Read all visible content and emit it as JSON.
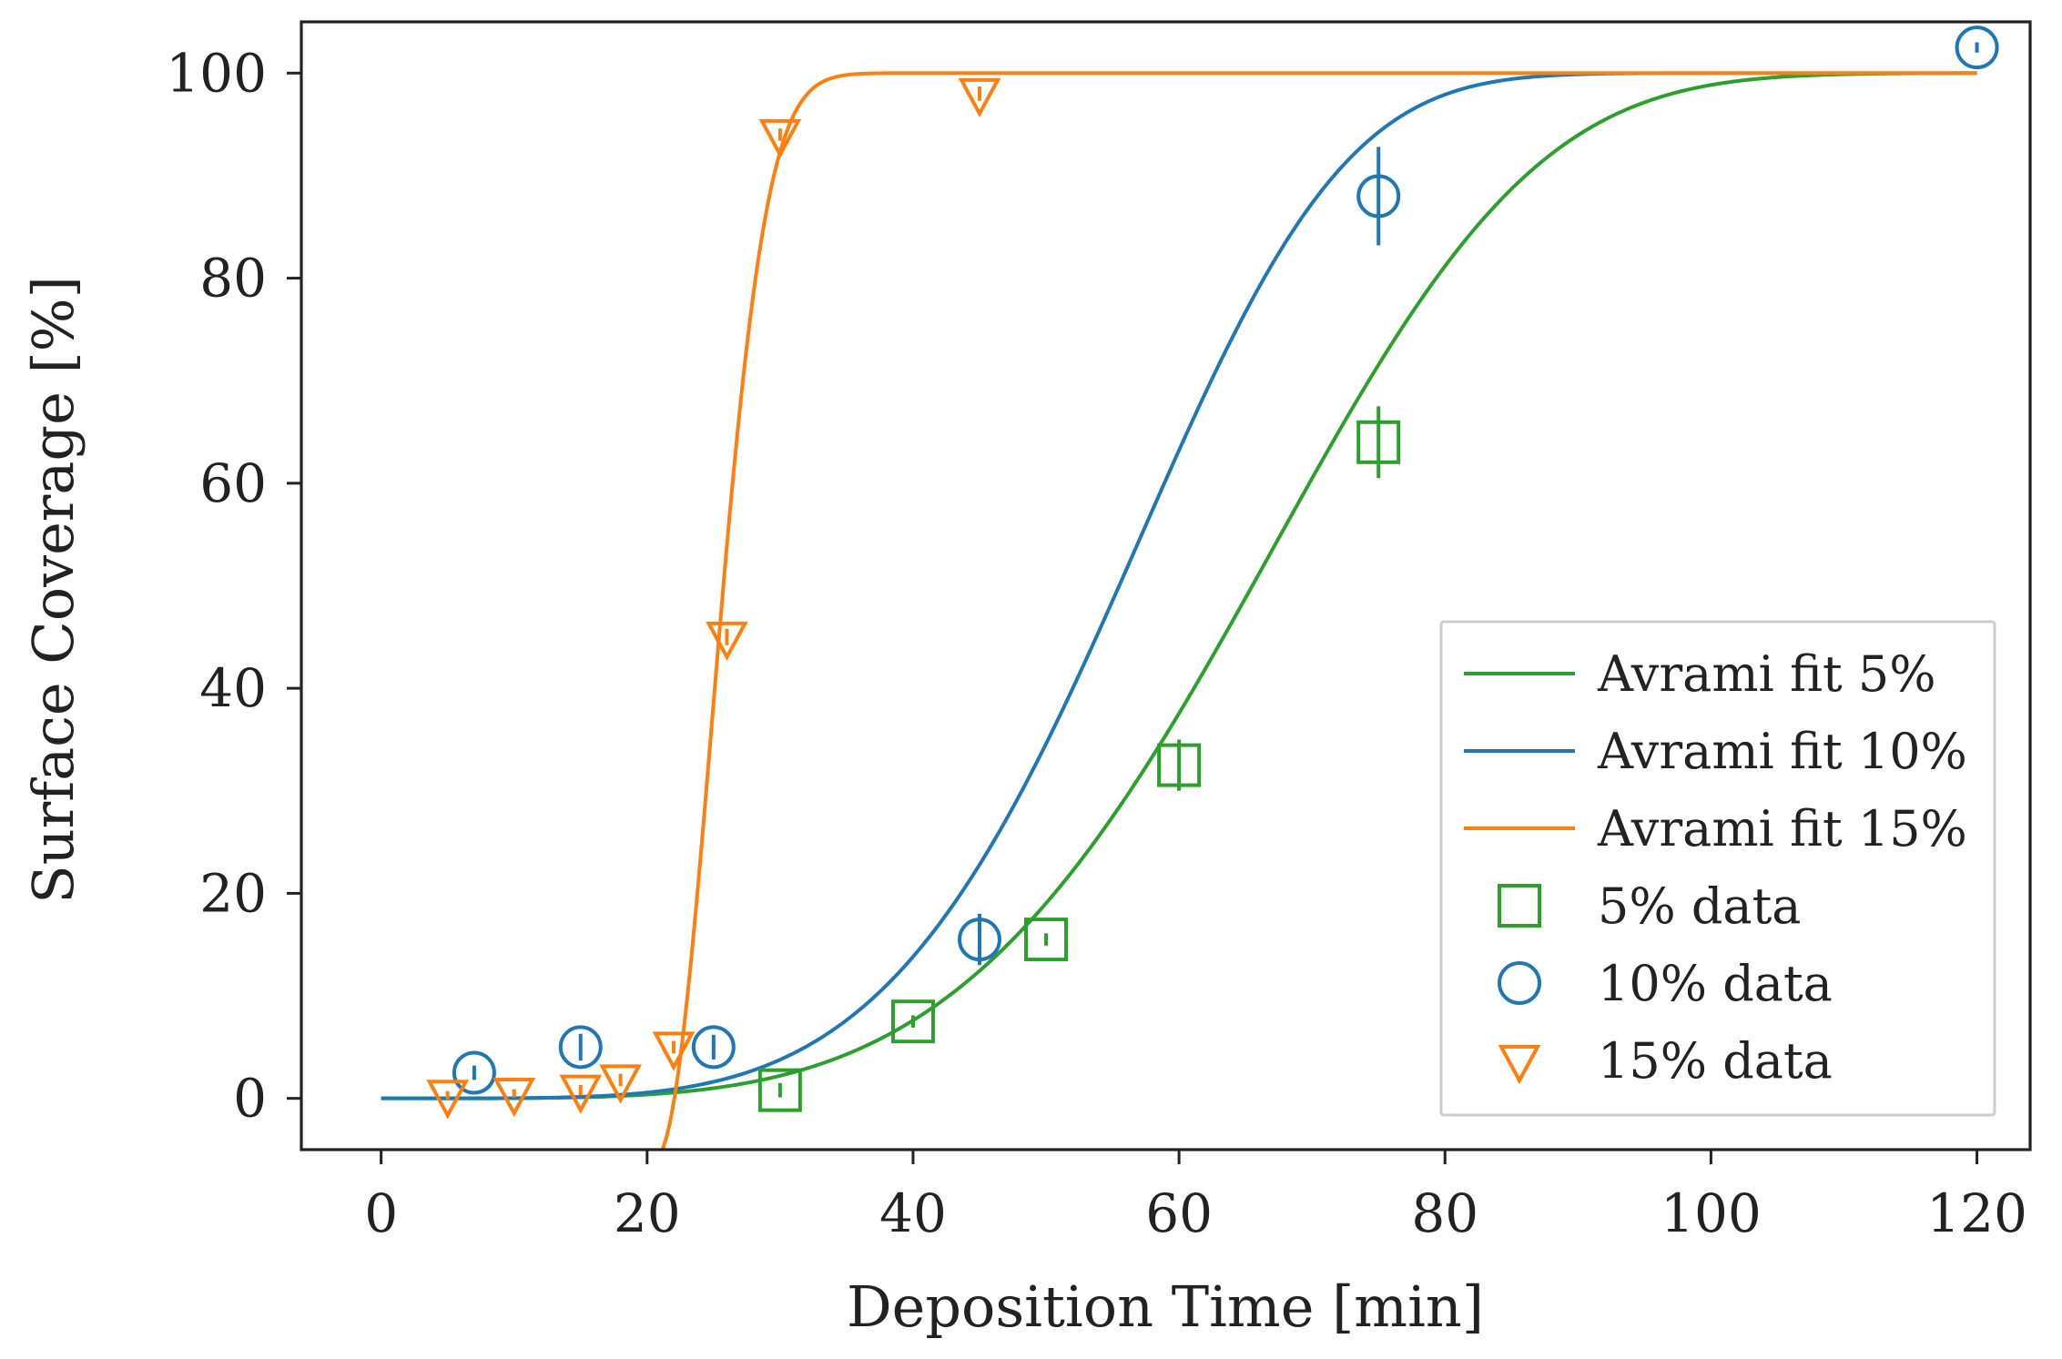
{
  "chart_data": {
    "type": "scatter",
    "title": "",
    "xlabel": "Deposition Time [min]",
    "ylabel": "Surface Coverage [%]",
    "xlim": [
      -6,
      124
    ],
    "ylim": [
      -5,
      105
    ],
    "xticks": [
      0,
      20,
      40,
      60,
      80,
      100,
      120
    ],
    "yticks": [
      0,
      20,
      40,
      60,
      80,
      100
    ],
    "xtick_labels": [
      "0",
      "20",
      "40",
      "60",
      "80",
      "100",
      "120"
    ],
    "ytick_labels": [
      "0",
      "20",
      "40",
      "60",
      "80",
      "100"
    ],
    "legend_position": "lower-right",
    "fits": [
      {
        "name": "Avrami fit 5%",
        "color": "#2ca02c",
        "x0": 0,
        "tau": 71.2,
        "n": 4.4,
        "offset": 0,
        "x_start": 0,
        "x_end": 120
      },
      {
        "name": "Avrami fit 10%",
        "color": "#1f77b4",
        "x0": 0,
        "tau": 60.0,
        "n": 4.7,
        "offset": 0,
        "x_start": 0,
        "x_end": 120
      },
      {
        "name": "Avrami fit 15%",
        "color": "#ff7f0e",
        "x0": 20.5,
        "tau": 6.0,
        "n": 2.1,
        "offset": -6,
        "x_start": 1.5,
        "x_end": 120
      }
    ],
    "series": [
      {
        "name": "5% data",
        "marker": "square",
        "color": "#2ca02c",
        "points": [
          {
            "x": 30,
            "y": 0.8,
            "err": 0.7
          },
          {
            "x": 40,
            "y": 7.5,
            "err": 0.6
          },
          {
            "x": 50,
            "y": 15.5,
            "err": 0.6
          },
          {
            "x": 60,
            "y": 32.5,
            "err": 2.5
          },
          {
            "x": 75,
            "y": 64,
            "err": 3.5
          }
        ]
      },
      {
        "name": "10% data",
        "marker": "circle",
        "color": "#1f77b4",
        "points": [
          {
            "x": 7,
            "y": 2.5,
            "err": 0.7
          },
          {
            "x": 15,
            "y": 5,
            "err": 1.3
          },
          {
            "x": 25,
            "y": 5,
            "err": 1.2
          },
          {
            "x": 45,
            "y": 15.5,
            "err": 2.5
          },
          {
            "x": 75,
            "y": 88,
            "err": 4.8
          },
          {
            "x": 120,
            "y": 102.5,
            "err": 0.5
          }
        ]
      },
      {
        "name": "15% data",
        "marker": "triangle-down",
        "color": "#ff7f0e",
        "points": [
          {
            "x": 5,
            "y": 0.3,
            "err": 0.4
          },
          {
            "x": 10,
            "y": 0.5,
            "err": 0.4
          },
          {
            "x": 15,
            "y": 0.8,
            "err": 0.5
          },
          {
            "x": 18,
            "y": 1.8,
            "err": 0.6
          },
          {
            "x": 22,
            "y": 5,
            "err": 0.6
          },
          {
            "x": 26,
            "y": 45,
            "err": 0.8
          },
          {
            "x": 30,
            "y": 94,
            "err": 0.6
          },
          {
            "x": 45,
            "y": 98,
            "err": 0.7
          }
        ]
      }
    ]
  }
}
